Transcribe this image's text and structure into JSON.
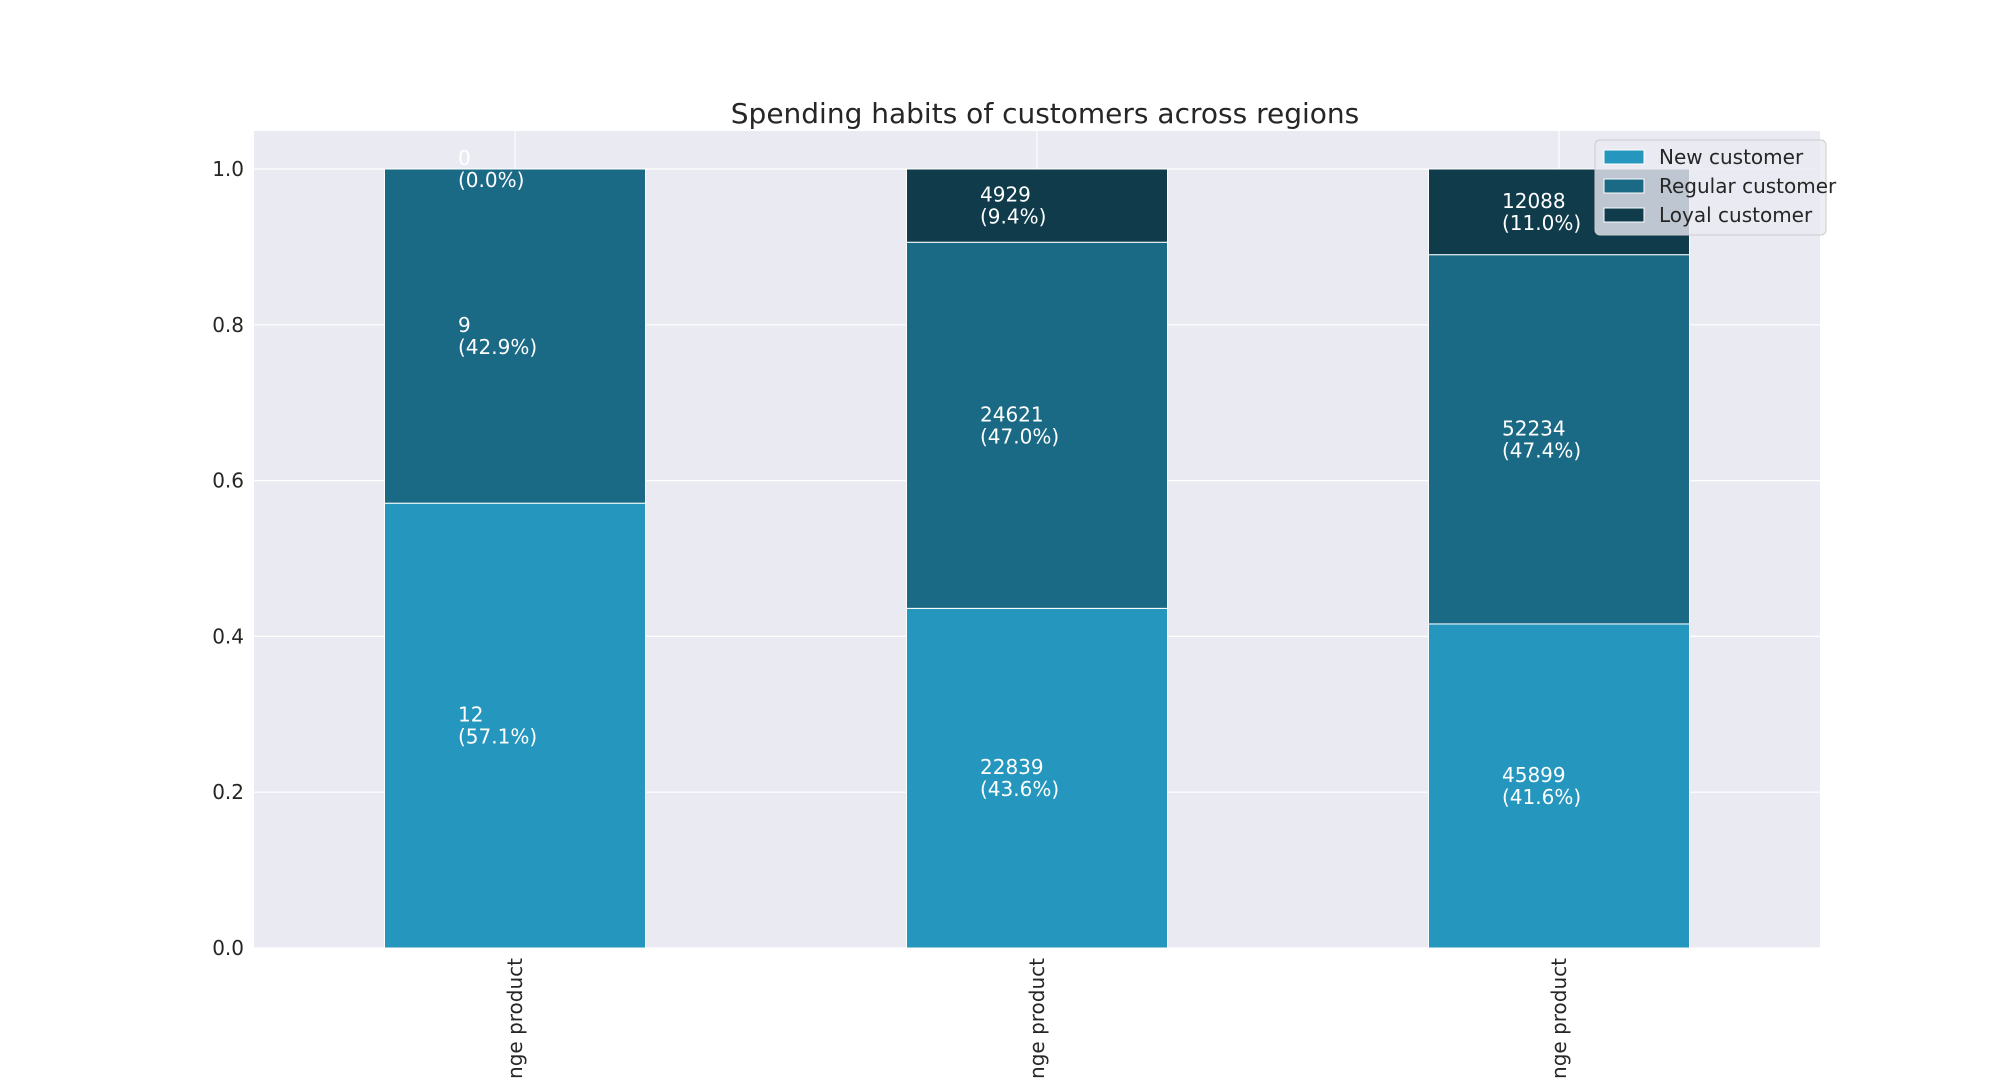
{
  "chart_data": {
    "type": "bar",
    "stacked": true,
    "title": "Spending habits of customers across regions",
    "xlabel": "",
    "ylabel": "",
    "ylim": [
      0,
      1.05
    ],
    "yticks": [
      0.0,
      0.2,
      0.4,
      0.6,
      0.8,
      1.0
    ],
    "ytick_labels": [
      "0.0",
      "0.2",
      "0.4",
      "0.6",
      "0.8",
      "1.0"
    ],
    "categories": [
      "range product",
      "range product",
      "range product"
    ],
    "grid": true,
    "legend_position": "top-right",
    "series": [
      {
        "name": "New customer",
        "color": "#2596be",
        "values": [
          0.571,
          0.436,
          0.416
        ],
        "labels": [
          [
            "12",
            "(57.1%)"
          ],
          [
            "22839",
            "(43.6%)"
          ],
          [
            "45899",
            "(41.6%)"
          ]
        ]
      },
      {
        "name": "Regular customer",
        "color": "#1a6985",
        "values": [
          0.429,
          0.47,
          0.474
        ],
        "labels": [
          [
            "9",
            "(42.9%)"
          ],
          [
            "24621",
            "(47.0%)"
          ],
          [
            "52234",
            "(47.4%)"
          ]
        ]
      },
      {
        "name": "Loyal customer",
        "color": "#0f3b4b",
        "values": [
          0.0,
          0.094,
          0.11
        ],
        "labels": [
          [
            "0",
            "(0.0%)"
          ],
          [
            "4929",
            "(9.4%)"
          ],
          [
            "12088",
            "(11.0%)"
          ]
        ]
      }
    ]
  }
}
